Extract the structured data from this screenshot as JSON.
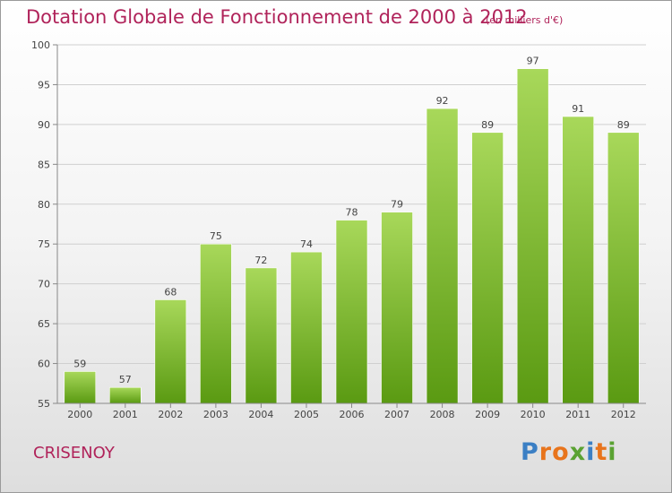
{
  "header": {
    "title": "Dotation Globale de Fonctionnement de 2000 à 2012",
    "unit": "(en milliers d'€)"
  },
  "commune": "CRISENOY",
  "logo": {
    "text": "Proxiti",
    "letter_colors": [
      "#3b7fc4",
      "#e8741c",
      "#e8741c",
      "#5aa232",
      "#3b7fc4",
      "#e8741c",
      "#5aa232"
    ]
  },
  "colors": {
    "title": "#b0235a",
    "bar_light": "#a8d85a",
    "bar_dark": "#5a9a12",
    "grid": "#d0d0d0"
  },
  "chart_data": {
    "type": "bar",
    "title": "Dotation Globale de Fonctionnement de 2000 à 2012",
    "subtitle": "(en milliers d'€)",
    "categories": [
      "2000",
      "2001",
      "2002",
      "2003",
      "2004",
      "2005",
      "2006",
      "2007",
      "2008",
      "2009",
      "2010",
      "2011",
      "2012"
    ],
    "values": [
      59,
      57,
      68,
      75,
      72,
      74,
      78,
      79,
      92,
      89,
      97,
      91,
      89
    ],
    "ylim": [
      55,
      100
    ],
    "yticks": [
      55,
      60,
      65,
      70,
      75,
      80,
      85,
      90,
      95,
      100
    ],
    "grid": true,
    "data_labels": true
  }
}
